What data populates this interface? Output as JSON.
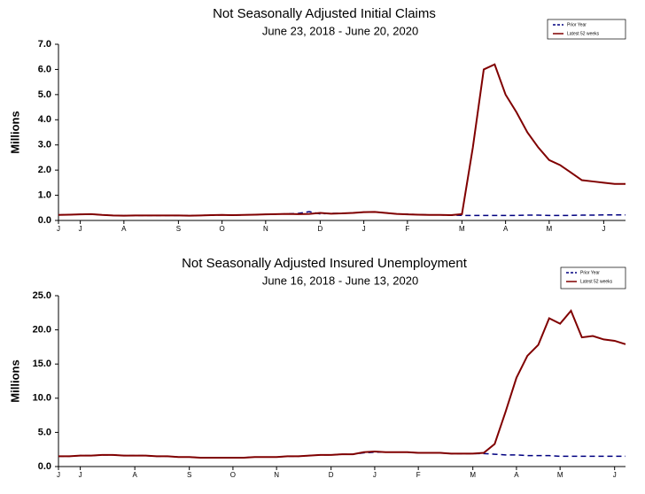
{
  "chart_data": [
    {
      "type": "line",
      "title": "Not Seasonally Adjusted Initial Claims",
      "subtitle": "June 23, 2018  - June 20, 2020",
      "ylabel": "Millions",
      "x": [
        0,
        1,
        2,
        3,
        4,
        5,
        6,
        7,
        8,
        9,
        10,
        11,
        12,
        13,
        14,
        15,
        16,
        17,
        18,
        19,
        20,
        21,
        22,
        23,
        24,
        25,
        26,
        27,
        28,
        29,
        30,
        31,
        32,
        33,
        34,
        35,
        36,
        37,
        38,
        39,
        40,
        41,
        42,
        43,
        44,
        45,
        46,
        47,
        48,
        49,
        50,
        51,
        52
      ],
      "xlim": [
        0,
        52
      ],
      "xticks": [
        {
          "value": 0,
          "label": "J"
        },
        {
          "value": 2,
          "label": "J"
        },
        {
          "value": 6,
          "label": "A"
        },
        {
          "value": 11,
          "label": "S"
        },
        {
          "value": 15,
          "label": "O"
        },
        {
          "value": 19,
          "label": "N"
        },
        {
          "value": 24,
          "label": "D"
        },
        {
          "value": 28,
          "label": "J"
        },
        {
          "value": 32,
          "label": "F"
        },
        {
          "value": 37,
          "label": "M"
        },
        {
          "value": 41,
          "label": "A"
        },
        {
          "value": 45,
          "label": "M"
        },
        {
          "value": 50,
          "label": "J"
        }
      ],
      "ylim": [
        0,
        7
      ],
      "yticks": [
        {
          "value": 0,
          "label": "0.0"
        },
        {
          "value": 1,
          "label": "1.0"
        },
        {
          "value": 2,
          "label": "2.0"
        },
        {
          "value": 3,
          "label": "3.0"
        },
        {
          "value": 4,
          "label": "4.0"
        },
        {
          "value": 5,
          "label": "5.0"
        },
        {
          "value": 6,
          "label": "6.0"
        },
        {
          "value": 7,
          "label": "7.0"
        }
      ],
      "series": [
        {
          "name": "Prior Year",
          "color": "#000080",
          "dashed": true,
          "values": [
            0.22,
            0.23,
            0.24,
            0.25,
            0.22,
            0.2,
            0.19,
            0.2,
            0.2,
            0.2,
            0.2,
            0.2,
            0.19,
            0.2,
            0.21,
            0.22,
            0.21,
            0.22,
            0.23,
            0.24,
            0.25,
            0.26,
            0.28,
            0.35,
            0.26,
            0.28,
            0.28,
            0.3,
            0.33,
            0.34,
            0.3,
            0.26,
            0.25,
            0.23,
            0.22,
            0.22,
            0.21,
            0.2,
            0.2,
            0.2,
            0.2,
            0.2,
            0.2,
            0.21,
            0.21,
            0.2,
            0.2,
            0.2,
            0.21,
            0.21,
            0.22,
            0.22,
            0.22
          ]
        },
        {
          "name": "Latest 52 weeks",
          "color": "#800000",
          "dashed": false,
          "values": [
            0.22,
            0.23,
            0.24,
            0.25,
            0.22,
            0.2,
            0.19,
            0.2,
            0.2,
            0.2,
            0.2,
            0.2,
            0.19,
            0.2,
            0.21,
            0.22,
            0.21,
            0.22,
            0.23,
            0.24,
            0.25,
            0.26,
            0.25,
            0.26,
            0.3,
            0.27,
            0.28,
            0.3,
            0.33,
            0.34,
            0.3,
            0.26,
            0.24,
            0.23,
            0.22,
            0.22,
            0.21,
            0.25,
            2.9,
            6.0,
            6.2,
            5.0,
            4.3,
            3.5,
            2.9,
            2.4,
            2.2,
            1.9,
            1.6,
            1.55,
            1.5,
            1.45,
            1.45
          ]
        }
      ]
    },
    {
      "type": "line",
      "title": "Not Seasonally Adjusted Insured Unemployment",
      "subtitle": "June 16, 2018  - June 13, 2020",
      "ylabel": "Millions",
      "x": [
        0,
        1,
        2,
        3,
        4,
        5,
        6,
        7,
        8,
        9,
        10,
        11,
        12,
        13,
        14,
        15,
        16,
        17,
        18,
        19,
        20,
        21,
        22,
        23,
        24,
        25,
        26,
        27,
        28,
        29,
        30,
        31,
        32,
        33,
        34,
        35,
        36,
        37,
        38,
        39,
        40,
        41,
        42,
        43,
        44,
        45,
        46,
        47,
        48,
        49,
        50,
        51,
        52
      ],
      "xlim": [
        0,
        52
      ],
      "xticks": [
        {
          "value": 0,
          "label": "J"
        },
        {
          "value": 2,
          "label": "J"
        },
        {
          "value": 7,
          "label": "A"
        },
        {
          "value": 12,
          "label": "S"
        },
        {
          "value": 16,
          "label": "O"
        },
        {
          "value": 20,
          "label": "N"
        },
        {
          "value": 25,
          "label": "D"
        },
        {
          "value": 29,
          "label": "J"
        },
        {
          "value": 33,
          "label": "F"
        },
        {
          "value": 38,
          "label": "M"
        },
        {
          "value": 42,
          "label": "A"
        },
        {
          "value": 46,
          "label": "M"
        },
        {
          "value": 51,
          "label": "J"
        }
      ],
      "ylim": [
        0,
        25
      ],
      "yticks": [
        {
          "value": 0,
          "label": "0.0"
        },
        {
          "value": 5,
          "label": "5.0"
        },
        {
          "value": 10,
          "label": "10.0"
        },
        {
          "value": 15,
          "label": "15.0"
        },
        {
          "value": 20,
          "label": "20.0"
        },
        {
          "value": 25,
          "label": "25.0"
        }
      ],
      "series": [
        {
          "name": "Prior Year",
          "color": "#000080",
          "dashed": true,
          "values": [
            1.5,
            1.5,
            1.6,
            1.6,
            1.7,
            1.7,
            1.6,
            1.6,
            1.6,
            1.5,
            1.5,
            1.4,
            1.4,
            1.3,
            1.3,
            1.3,
            1.3,
            1.3,
            1.4,
            1.4,
            1.4,
            1.5,
            1.5,
            1.6,
            1.7,
            1.7,
            1.8,
            1.8,
            2.0,
            2.1,
            2.1,
            2.1,
            2.1,
            2.0,
            2.0,
            2.0,
            1.9,
            1.9,
            1.9,
            1.9,
            1.8,
            1.7,
            1.7,
            1.6,
            1.6,
            1.6,
            1.5,
            1.5,
            1.5,
            1.5,
            1.5,
            1.5,
            1.5
          ]
        },
        {
          "name": "Latest 52 weeks",
          "color": "#800000",
          "dashed": false,
          "values": [
            1.5,
            1.5,
            1.6,
            1.6,
            1.7,
            1.7,
            1.6,
            1.6,
            1.6,
            1.5,
            1.5,
            1.4,
            1.4,
            1.3,
            1.3,
            1.3,
            1.3,
            1.3,
            1.4,
            1.4,
            1.4,
            1.5,
            1.5,
            1.6,
            1.7,
            1.7,
            1.8,
            1.8,
            2.1,
            2.2,
            2.1,
            2.1,
            2.1,
            2.0,
            2.0,
            2.0,
            1.9,
            1.9,
            1.9,
            2.0,
            3.3,
            8.0,
            13.0,
            16.2,
            17.8,
            21.7,
            20.9,
            22.8,
            18.9,
            19.1,
            18.6,
            18.4,
            17.9
          ]
        }
      ]
    }
  ]
}
